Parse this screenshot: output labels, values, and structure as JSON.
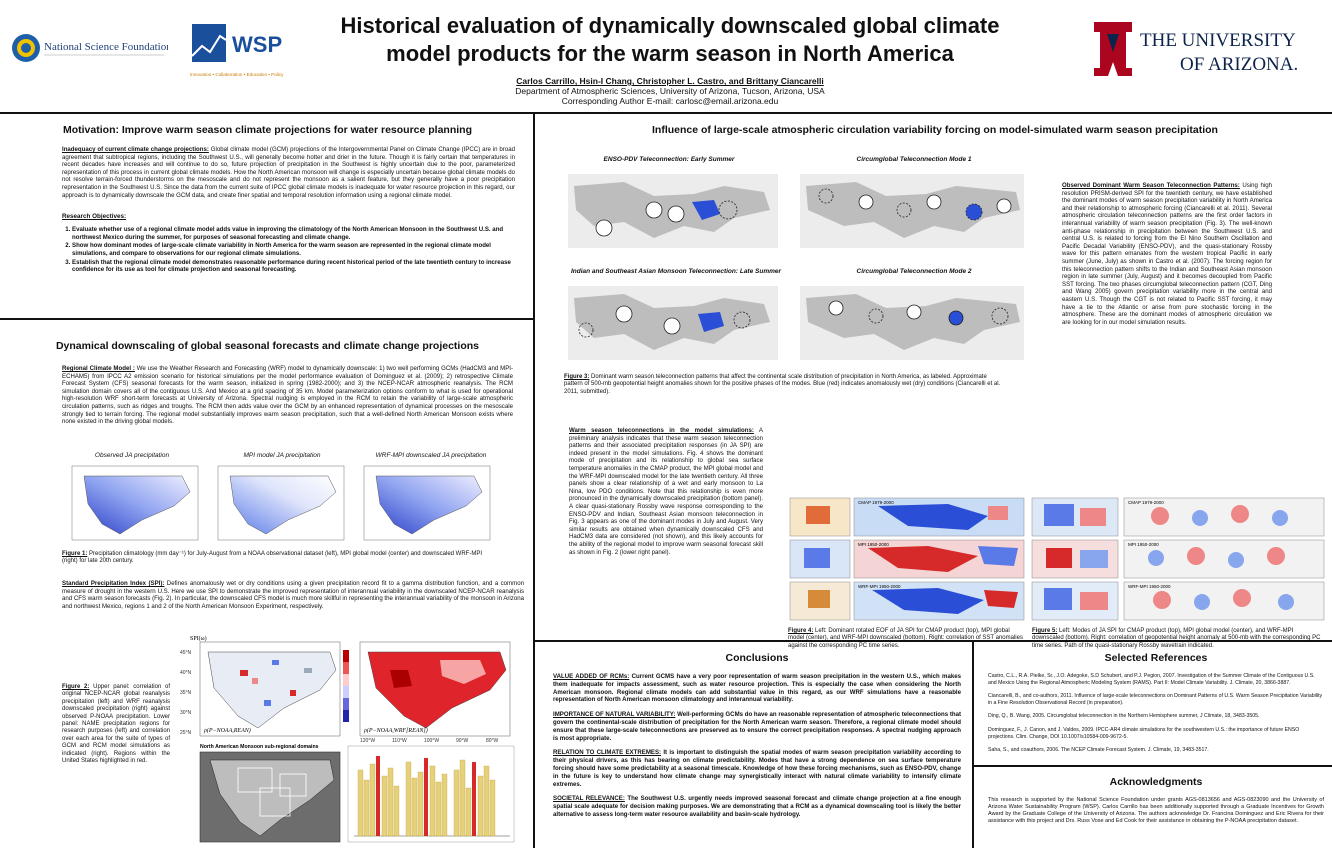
{
  "header": {
    "title_line1": "Historical evaluation of dynamically downscaled global climate",
    "title_line2": "model products for the warm season in North America",
    "authors": "Carlos Carrillo, Hsin-I Chang, Christopher L. Castro, and Brittany Ciancarelli",
    "affiliation": "Department of Atmospheric Sciences, University of Arizona, Tucson, Arizona, USA",
    "corresponding": "Corresponding Author E-mail: carlosc@email.arizona.edu",
    "nsf_logo_text": "National Science Foundation",
    "wsp_logo_text": "WSP",
    "wsp_tagline": "Innovation • Collaboration • Education • Policy",
    "ua_logo_line1": "THE UNIVERSITY",
    "ua_logo_line2": "OF ARIZONA."
  },
  "motivation": {
    "title": "Motivation: Improve warm season climate projections for water resource planning",
    "para1_head": "Inadequacy of current climate change projections:",
    "para1": " Global climate model (GCM) projections of the Intergovernmental Panel on Climate Change (IPCC) are in broad agreement that subtropical regions, including the Southwest U.S., will generally become hotter and drier in the future. Though it is fairly certain that temperatures in recent decades have increases and will continue to do so, future projection of precipitation in the Southwest is highly uncertain due to the poor, parameterized representation of this process in current global climate models. How the North American monsoon will change is especially uncertain because global climate models do not resolve terrain-forced thunderstorms on the mesoscale and do not represent the monsoon as a salient feature, but they generally have a poor precipitation representation in the Southwest U.S. Since the data from the current suite of IPCC global climate models is inadequate for water resource projection in this regard, our approach is to dynamically downscale the GCM data, and create finer spatial and temporal resolution information using a regional climate model.",
    "objectives_head": "Research Objectives:",
    "objectives": [
      "Evaluate whether use of a regional climate model adds value in improving the climatology of the North American Monsoon in the Southwest U.S. and northwest Mexico during the summer, for purposes of seasonal forecasting and climate change.",
      "Show how dominant modes of large-scale climate variability in North America for the warm season are represented in the regional climate model simulations, and compare to observations for our regional climate simulations.",
      "Establish that the regional climate model demonstrates reasonable performance during recent historical period of the late twentieth century to increase confidence for its use as tool for climate projection and seasonal forecasting."
    ]
  },
  "downscaling": {
    "title": "Dynamical downscaling of global seasonal forecasts and climate change projections",
    "rcm_head": "Regional Climate Model :",
    "rcm_text": " We use the Weather Research and Forecasting (WRF) model to dynamically downscale: 1) two well performing GCMs (HadCM3 and MPI-ECHAM5) from IPCC A2 emission scenario for historical simulations per the model performance evaluation of Dominguez et al. (2009); 2) retrospective Climate Forecast System (CFS) seasonal forecasts for the warm season, initialized in spring (1982-2000); and 3) the NCEP-NCAR atmospheric reanalysis. The RCM simulation domain covers all of the contiguous U.S. And Mexico at a grid spacing of 35 km. Model parameterization options conform to what is used for operational high-resolution WRF short-term forecasts at University of Arizona. Spectral nudging is employed in the RCM to retain the variability of large-scale atmospheric circulation patterns, such as ridges and troughs. The RCM then adds value over the GCM by an enhanced representation of dynamical processes on the mesoscale strongly tied to terrain forcing. The regional model substantially improves warm season precipitation, such that a well-defined North American Monsoon exists where none existed in the driving global models.",
    "fig1_panels": [
      "Observed JA precipitation",
      "MPI model JA precipitation",
      "WRF-MPI downscaled JA precipitation"
    ],
    "fig1_caption_label": "Figure 1:",
    "fig1_caption": " Precipitation climatology (mm day⁻¹) for July-August from a NOAA observational dataset (left), MPI global model (center) and downscaled WRF-MPI (right) for late 20th century.",
    "spi_head": "Standard Precipitation Index (SPI):",
    "spi_text": " Defines anomalously wet or dry conditions using a given precipitation record fit to a gamma distribution function, and a common measure of drought in the western U.S. Here we use SPI to demonstrate the improved representation of interannual variability in the downscaled NCEP-NCAR reanalysis and CFS warm season forecasts (Fig. 2). In particular, the downscaled CFS model is much more skillful in representing the interannual variability of the monsoon in Arizona and northwest Mexico, regions 1 and 2 of the North American Monsoon Experiment, respectively.",
    "fig2_caption_label": "Figure 2:",
    "fig2_caption": " Upper panel: correlation of original NCEP-NCAR global reanalysis precipitation (left) and WRF reanalysis downscaled precipitation (right) against observed P-NOAA precipitation. Lower panel: NAME precipitation regions for research purposes (left) and correlation over each area for the suite of types of GCM and RCM model simulations as indicated (right). Regions within the United States highlighted in red.",
    "fig2_map_left_label": "ρ(P−NOAA,REAN)",
    "fig2_map_right_label": "ρ(P−NOAA,WRF[REAN])",
    "fig2_spi_label": "SPI(ω)",
    "fig2_name_title": "North American Monsoon sub-regional domains",
    "lat_ticks": [
      "45°N",
      "40°N",
      "35°N",
      "30°N",
      "25°N"
    ],
    "lon_ticks": [
      "120°W",
      "110°W",
      "100°W",
      "90°W",
      "80°W"
    ]
  },
  "influence": {
    "title": "Influence of large-scale atmospheric circulation variability forcing on model-simulated warm season precipitation",
    "panels": [
      "ENSO-PDV Teleconnection: Early Summer",
      "Circumglobal Teleconnection Mode 1",
      "Indian and Southeast Asian Monsoon Teleconnection: Late Summer",
      "Circumglobal Teleconnection Mode 2"
    ],
    "obs_head": "Observed Dominant Warm Season Teleconnection Patterns:",
    "obs_text": " Using high resolution PRISM-derived SPI for the twentieth century, we have established the dominant modes of warm season precipitation variability in North America and their relationship to atmospheric forcing (Ciancarelli et al. 2011). Several atmospheric circulation teleconnection patterns are the first order factors in interannual variability of warm season precipitation (Fig. 3). The well-known anti-phase relationship in precipitation between the Southwest U.S. and central U.S. is related to forcing from the El Nino Southern Oscillation and Pacific Decadal Variability (ENSO-PDV), and the quasi-stationary Rossby wave for this pattern emanates from the western tropical Pacific in early summer (June, July) as shown in Castro et al. (2007). The forcing region for this teleconnection pattern shifts to the Indian and Southeast Asian monsoon region in late summer (July, August) and it becomes decoupled from Pacific SST forcing. The two phases circumglobal teleconnection pattern (CGT, Ding and Wang 2005) govern precipitation variability more in the central and eastern U.S. Though the CGT is not related to Pacific SST forcing, it may have a tie to the Atlantic or arise from pure stochastic forcing in the atmosphere. These are the dominant modes of atmospheric circulation we are looking for in our model simulation results.",
    "fig3_caption_label": "Figure 3:",
    "fig3_caption": " Dominant warm season teleconnection patterns that affect the continental scale distribution of precipitation in North America, as labeled. Approximate pattern of 500-mb geopotential height anomalies shown for the positive phases of the modes. Blue (red) indicates anomalously wet (dry) conditions (Ciancarelli et al. 2011, submitted).",
    "model_head": "Warm season teleconnections in the model simulations:",
    "model_text": " A preliminary analysis indicates that these warm season teleconnection patterns and their associated precipitation responses (in JA SPI) are indeed present in the model simulations. Fig. 4 shows the dominant mode of precipitation and its relationship to global sea surface temperature anomalies in the CMAP product, the MPI global model and the WRF-MPI downscaled model for the late twentieth century. All three panels show a clear relationship of a wet and early monsoon to La Nina, low PDO conditions. Note that this relationship is even more pronounced in the dynamically downscaled precipitation (bottom panel). A clear quasi-stationary Rossby wave response corresponding to the ENSO-PDV and Indian, Southeast Asian monsoon teleconnection in Fig. 3 appears as one of the dominant modes in July and August. Very similar results are obtained when dynamically downscaled CFS and HadCM3 data are considered (not shown), and this likely accounts for the ability of the regional model to improve warm seasonal forecast skill as shown in Fig. 2 (lower right panel).",
    "fig4_caption_label": "Figure 4:",
    "fig4_caption": " Left: Dominant rotated EOF of JA SPI for CMAP product (top), MPI global model (center), and WRF-MPI downscaled (bottom). Right: correlation of SST anomalies against the corresponding PC time series.",
    "fig5_caption_label": "Figure 5:",
    "fig5_caption": " Left: Modes of JA SPI for CMAP product (top), MPI global model (center), and WRF-MPI downscaled (bottom). Right: correlation of geopotential height anomaly at 500-mb with the corresponding PC time series. Path of the quasi-stationary Rossby wavetrain indicated.",
    "fig_strip_labels": [
      "CMAP 1979-2000",
      "MPI 1950-2000",
      "WRF-MPI 1950-2000"
    ]
  },
  "conclusions": {
    "title": "Conclusions",
    "items": [
      {
        "head": "VALUE ADDED OF RCMs:",
        "text": " Current GCMS have a very poor representation of warm season precipitation in the western U.S., which makes them inadequate for impacts assessment, such as water resource projection. This is especially the case when considering the North American monsoon. Regional climate models can add substantial value in this regard, as our WRF simulations have a reasonable representation of North American monsoon climatology and interannual variability."
      },
      {
        "head": "IMPORTANCE OF NATURAL VARIABILITY:",
        "text": " Well-performing GCMs do have an reasonable representation of atmospheric teleconnections that govern the continental-scale distribution of precipitation for the North American warm season. Therefore, a regional climate model should ensure that these large-scale teleconnections are preserved as to ensure the correct precipitation responses. A spectral nudging approach is most appropriate."
      },
      {
        "head": "RELATION TO CLIMATE EXTREMES:",
        "text": " It is important to distinguish the spatial modes of warm season precipitation variability according to their physical drivers, as this has bearing on climate predictability. Modes that have a strong dependence on sea surface temperature forcing should have some predictability at a seasonal timescale. Knowledge of how these forcing mechanisms, such as ENSO-PDV, change in the future is key to understand how climate change may synergistically interact with natural climate variability to intensify climate extremes."
      },
      {
        "head": "SOCIETAL RELEVANCE:",
        "text": " The Southwest U.S. urgently needs improved seasonal forecast and climate change projection at a fine enough spatial scale adequate for decision making purposes. We are demonstrating that a RCM as a dynamical downscaling tool is likely the better alternative to assess long-term water resource availability and basin-scale hydrology."
      }
    ]
  },
  "references": {
    "title": "Selected References",
    "items": [
      "Castro, C.L., R.A. Pielke, Sr., J.O. Adegoke, S.D Schubert, and P.J. Pegion, 2007. Investigation of the Summer Climate of the Contiguous U.S. and Mexico Using the Regional Atmospheric Modeling System (RAMS). Part II: Model Climate Variability. J. Climate, 20, 3866-3887.",
      "Ciancarelli, B., and co-authors, 2011. Influence of large-scale teleconnections on Dominant Patterns of U.S. Warm Season Precipitation Variability in a Fine Resolution Observational Record (in preparation).",
      "Ding, Q., B. Wang, 2005. Circumglobal teleconnection in the Northern Hemisphere summer, J Climate, 18, 3483-3505.",
      "Dominguez, F., J. Canon, and J. Valdes, 2009. IPCC-AR4 climate simulations for the southwestern U.S.: the importance of future ENSO projections. Clim. Change, DOI 10.1007/s10584-009-9672-5.",
      "Saha, S., and coauthors, 2006. The NCEP Climate Forecast System. J. Climate, 19, 3483-3517."
    ]
  },
  "acknowledgments": {
    "title": "Acknowledgments",
    "text": "This research is supported by the National Science Foundation under grants AGS-0813656 and AGS-0823090 and the University of Arizona Water Sustainability Program (WSP). Carlos Carrillo has been additionally supported through a Graduate Incentives for Growth Award by the Graduate College of the University of Arizona. The authors acknowledge Dr. Francina Dominguez and Eric Rivera for their assistance with this project and Drs. Russ Vose and Ed Cook for their assistance in obtaining the P-NOAA precipitation dataset."
  },
  "colors": {
    "ua_red": "#ab0520",
    "ua_blue": "#0c234b",
    "wsp_blue": "#1a4f9c",
    "wet_blue": "#2a4fd6",
    "dry_red": "#d62a2a"
  }
}
